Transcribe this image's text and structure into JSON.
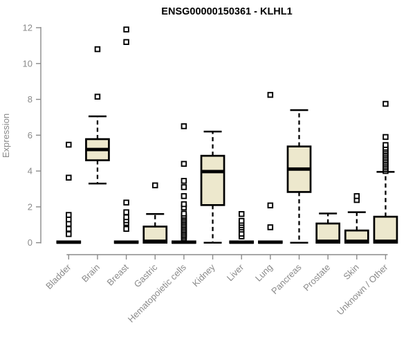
{
  "chart_data": {
    "type": "boxplot",
    "title": "ENSG00000150361 - KLHL1",
    "ylabel": "Expression",
    "xlabel": "",
    "ylim": [
      0,
      12
    ],
    "yticks": [
      0,
      2,
      4,
      6,
      8,
      10,
      12
    ],
    "grid": false,
    "legend": "none",
    "colors": {
      "box_fill": "#EDE8CD",
      "box_stroke": "#000000",
      "axis": "#8a8a8a",
      "title": "#000000",
      "outlier_fill": "#ffffff"
    },
    "categories": [
      "Bladder",
      "Brain",
      "Breast",
      "Gastric",
      "Hematopoietic cells",
      "Kidney",
      "Liver",
      "Lung",
      "Pancreas",
      "Prostate",
      "Skin",
      "Unknown / Other"
    ],
    "series": [
      {
        "category": "Bladder",
        "whisker_low": 0,
        "q1": 0,
        "median": 0.03,
        "q3": 0.07,
        "whisker_high": 0.07,
        "outliers": [
          0.48,
          0.77,
          1.05,
          1.3,
          1.55,
          3.63,
          5.47
        ]
      },
      {
        "category": "Brain",
        "whisker_low": 3.3,
        "q1": 4.6,
        "median": 5.2,
        "q3": 5.78,
        "whisker_high": 7.05,
        "outliers": [
          8.15,
          10.8
        ]
      },
      {
        "category": "Breast",
        "whisker_low": 0,
        "q1": 0,
        "median": 0.03,
        "q3": 0.07,
        "whisker_high": 0.07,
        "outliers": [
          0.77,
          1.1,
          1.25,
          1.42,
          1.7,
          2.24,
          11.2,
          11.9
        ]
      },
      {
        "category": "Gastric",
        "whisker_low": 0,
        "q1": 0,
        "median": 0.08,
        "q3": 0.9,
        "whisker_high": 1.6,
        "outliers": [
          3.2
        ]
      },
      {
        "category": "Hematopoietic cells",
        "whisker_low": 0,
        "q1": 0,
        "median": 0.03,
        "q3": 0.07,
        "whisker_high": 0.07,
        "outliers": [
          0.25,
          0.34,
          0.43,
          0.52,
          0.61,
          0.7,
          0.79,
          0.88,
          0.97,
          1.06,
          1.15,
          1.24,
          1.33,
          1.42,
          1.51,
          1.62,
          1.96,
          2.15,
          2.6,
          3.1,
          3.45,
          4.4,
          6.5
        ]
      },
      {
        "category": "Kidney",
        "whisker_low": 0,
        "q1": 2.1,
        "median": 3.97,
        "q3": 4.85,
        "whisker_high": 6.2,
        "outliers": []
      },
      {
        "category": "Liver",
        "whisker_low": 0,
        "q1": 0,
        "median": 0.03,
        "q3": 0.07,
        "whisker_high": 0.07,
        "outliers": [
          0.35,
          0.5,
          0.73,
          0.85,
          0.97,
          1.1,
          1.22,
          1.6
        ]
      },
      {
        "category": "Lung",
        "whisker_low": 0,
        "q1": 0,
        "median": 0.03,
        "q3": 0.07,
        "whisker_high": 0.07,
        "outliers": [
          0.86,
          2.08,
          8.25
        ]
      },
      {
        "category": "Pancreas",
        "whisker_low": 0,
        "q1": 2.83,
        "median": 4.11,
        "q3": 5.37,
        "whisker_high": 7.4,
        "outliers": []
      },
      {
        "category": "Prostate",
        "whisker_low": 0,
        "q1": 0,
        "median": 0.08,
        "q3": 1.07,
        "whisker_high": 1.63,
        "outliers": []
      },
      {
        "category": "Skin",
        "whisker_low": 0,
        "q1": 0,
        "median": 0.08,
        "q3": 0.68,
        "whisker_high": 1.7,
        "outliers": [
          2.38,
          2.6
        ]
      },
      {
        "category": "Unknown / Other",
        "whisker_low": 0,
        "q1": 0,
        "median": 0.08,
        "q3": 1.45,
        "whisker_high": 3.95,
        "outliers": [
          4.0,
          4.1,
          4.2,
          4.3,
          4.4,
          4.5,
          4.6,
          4.7,
          4.8,
          4.9,
          5.0,
          5.1,
          5.2,
          5.3,
          5.45,
          5.9,
          7.75
        ]
      }
    ]
  }
}
